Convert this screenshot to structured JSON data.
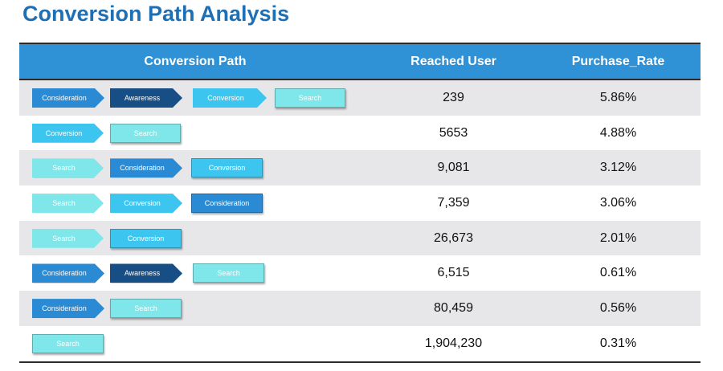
{
  "title": "Conversion Path Analysis",
  "headers": {
    "path": "Conversion Path",
    "users": "Reached User",
    "rate": "Purchase_Rate"
  },
  "step_colors": {
    "Consideration": {
      "bg": "#2b8ad4",
      "fg": "#ffffff"
    },
    "Awareness": {
      "bg": "#174e86",
      "fg": "#ffffff"
    },
    "Conversion": {
      "bg": "#3cc6ef",
      "fg": "#ffffff"
    },
    "Search": {
      "bg": "#7fe6ea",
      "fg": "#ffffff"
    }
  },
  "rows": [
    {
      "path": [
        "Consideration",
        "Awareness",
        "Conversion",
        "Search"
      ],
      "users": "239",
      "rate": "5.86%"
    },
    {
      "path": [
        "Conversion",
        "Search"
      ],
      "users": "5653",
      "rate": "4.88%"
    },
    {
      "path": [
        "Search",
        "Consideration",
        "Conversion"
      ],
      "users": "9,081",
      "rate": "3.12%"
    },
    {
      "path": [
        "Search",
        "Conversion",
        "Consideration"
      ],
      "users": "7,359",
      "rate": "3.06%"
    },
    {
      "path": [
        "Search",
        "Conversion"
      ],
      "users": "26,673",
      "rate": "2.01%"
    },
    {
      "path": [
        "Consideration",
        "Awareness",
        "Search"
      ],
      "users": "6,515",
      "rate": "0.61%"
    },
    {
      "path": [
        "Consideration",
        "Search"
      ],
      "users": "80,459",
      "rate": "0.56%"
    },
    {
      "path": [
        "Search"
      ],
      "users": "1,904,230",
      "rate": "0.31%"
    }
  ]
}
